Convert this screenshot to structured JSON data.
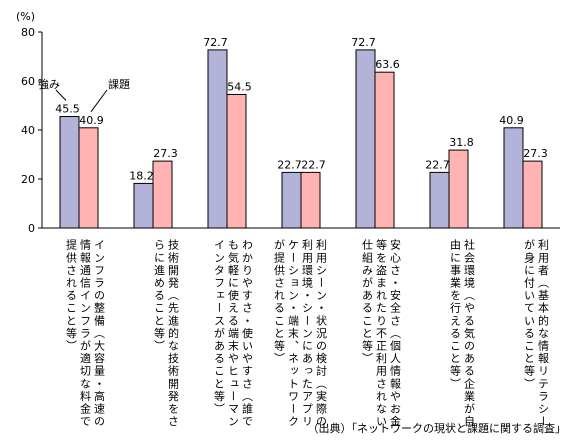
{
  "chart_data": {
    "type": "bar",
    "unit_label": "(%)",
    "ylim": [
      0,
      80
    ],
    "yticks": [
      0,
      20,
      40,
      60,
      80
    ],
    "grid": false,
    "legend_placement": "annotations above first group",
    "series": [
      {
        "name": "強み",
        "color": "#b3b3d9",
        "values": [
          45.5,
          18.2,
          72.7,
          22.7,
          72.7,
          22.7,
          40.9
        ]
      },
      {
        "name": "課題",
        "color": "#ffb3b3",
        "values": [
          40.9,
          27.3,
          54.5,
          22.7,
          63.6,
          31.8,
          27.3
        ]
      }
    ],
    "categories": [
      [
        "インフラの整備（大容量・高速の",
        "情報通信インフラが適切な料金で",
        "提供されること等）"
      ],
      [
        "技術開発（先進的な技術開発をさ",
        "らに進めること等）"
      ],
      [
        "わかりやすさ・使いやすさ（誰で",
        "も気軽に使える端末やヒューマン",
        "インタフェースがあること等）"
      ],
      [
        "利用シーン・状況の検討（実際の",
        "利用環境・シーンにあったアプリ",
        "ケーション・端末、ネットワーク",
        "が提供されること等）"
      ],
      [
        "安心さ・安全さ（個人情報やお金",
        "等を盗まれたり不正利用されない",
        "仕組みがあること等）"
      ],
      [
        "社会環境（やる気のある企業が自",
        "由に事業を行えること等）"
      ],
      [
        "利用者（基本的な情報リテラシー",
        "が身に付いていること等）"
      ]
    ]
  },
  "source_note": "（出典）「ネットワークの現状と課題に関する調査」"
}
